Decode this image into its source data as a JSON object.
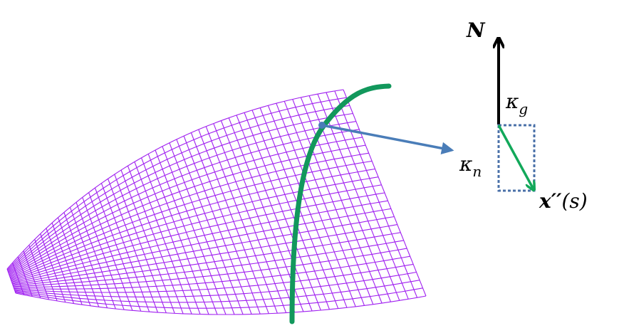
{
  "labels": {
    "normal": "N",
    "kappa_g": {
      "base": "κ",
      "sub": "g"
    },
    "kappa_n": {
      "base": "κ",
      "sub": "n"
    },
    "curvature_vector": {
      "base": "x′′",
      "arg": "(s)"
    }
  }
}
